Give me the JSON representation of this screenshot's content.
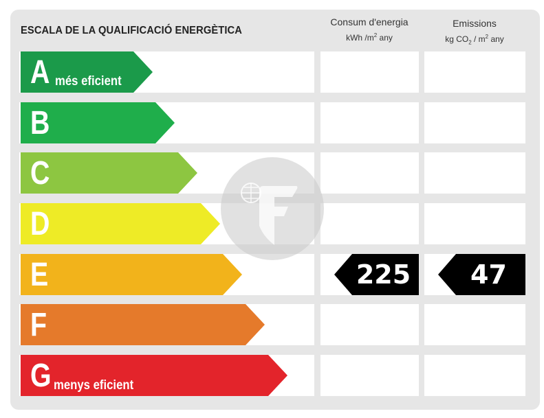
{
  "header": {
    "title": "ESCALA DE LA QUALIFICACIÓ ENERGÈTICA",
    "consumption_label": "Consum d'energia",
    "consumption_unit_a": "kWh /m",
    "consumption_unit_sup": "2",
    "consumption_unit_b": " any",
    "emissions_label": "Emissions",
    "emissions_unit_a": "kg CO",
    "emissions_unit_sub": "2",
    "emissions_unit_b": " / m",
    "emissions_unit_sup": "2",
    "emissions_unit_c": " any"
  },
  "classes": [
    {
      "letter": "A",
      "description": "més eficient",
      "color": "#1b9a4a"
    },
    {
      "letter": "B",
      "description": "",
      "color": "#1fae4b"
    },
    {
      "letter": "C",
      "description": "",
      "color": "#8dc641"
    },
    {
      "letter": "D",
      "description": "",
      "color": "#eeeb26"
    },
    {
      "letter": "E",
      "description": "",
      "color": "#f2b31b"
    },
    {
      "letter": "F",
      "description": "",
      "color": "#e57a2b"
    },
    {
      "letter": "G",
      "description": "menys eficient",
      "color": "#e3242b"
    }
  ],
  "rating": {
    "class": "E",
    "consumption_value": "225",
    "emissions_value": "47",
    "badge_color": "#000000"
  }
}
